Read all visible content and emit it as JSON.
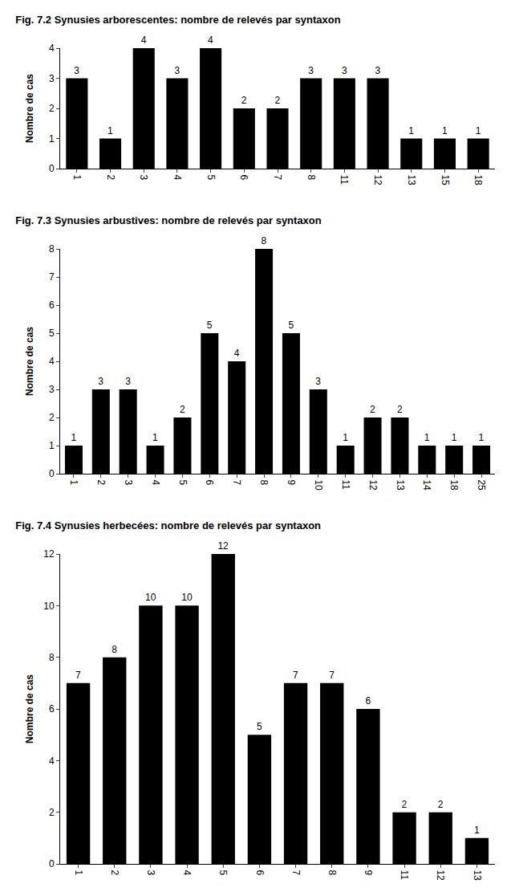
{
  "chart_data": [
    {
      "type": "bar",
      "title": "Fig. 7.2 Synusies arborescentes: nombre de relevés par syntaxon",
      "y_label": "Nombre de cas",
      "categories": [
        "1",
        "2",
        "3",
        "4",
        "5",
        "6",
        "7",
        "8",
        "11",
        "12",
        "13",
        "15",
        "18"
      ],
      "values": [
        3,
        1,
        4,
        3,
        4,
        2,
        2,
        3,
        3,
        3,
        1,
        1,
        1
      ],
      "color": "#000000",
      "ylim": [
        0,
        4
      ],
      "yticks": [
        0,
        1,
        2,
        3,
        4
      ],
      "grid": false,
      "data_labels": true
    },
    {
      "type": "bar",
      "title": "Fig. 7.3 Synusies arbustives: nombre de relevés par syntaxon",
      "y_label": "Nombre de cas",
      "categories": [
        "1",
        "2",
        "3",
        "4",
        "5",
        "6",
        "7",
        "8",
        "9",
        "10",
        "11",
        "12",
        "13",
        "14",
        "18",
        "25"
      ],
      "values": [
        1,
        3,
        3,
        1,
        2,
        5,
        4,
        8,
        5,
        3,
        1,
        2,
        2,
        1,
        1,
        1
      ],
      "color": "#000000",
      "ylim": [
        0,
        8
      ],
      "yticks": [
        0,
        1,
        2,
        3,
        4,
        5,
        6,
        7,
        8
      ],
      "grid": false,
      "data_labels": true
    },
    {
      "type": "bar",
      "title": "Fig. 7.4 Synusies herbecées: nombre de relevés par syntaxon",
      "y_label": "Nombre de cas",
      "categories": [
        "1",
        "2",
        "3",
        "4",
        "5",
        "6",
        "7",
        "8",
        "9",
        "11",
        "12",
        "13"
      ],
      "values": [
        7,
        8,
        10,
        10,
        12,
        5,
        7,
        7,
        6,
        2,
        2,
        1
      ],
      "color": "#000000",
      "ylim": [
        0,
        12
      ],
      "yticks": [
        0,
        2,
        4,
        6,
        8,
        10,
        12
      ],
      "grid": false,
      "data_labels": true
    }
  ]
}
